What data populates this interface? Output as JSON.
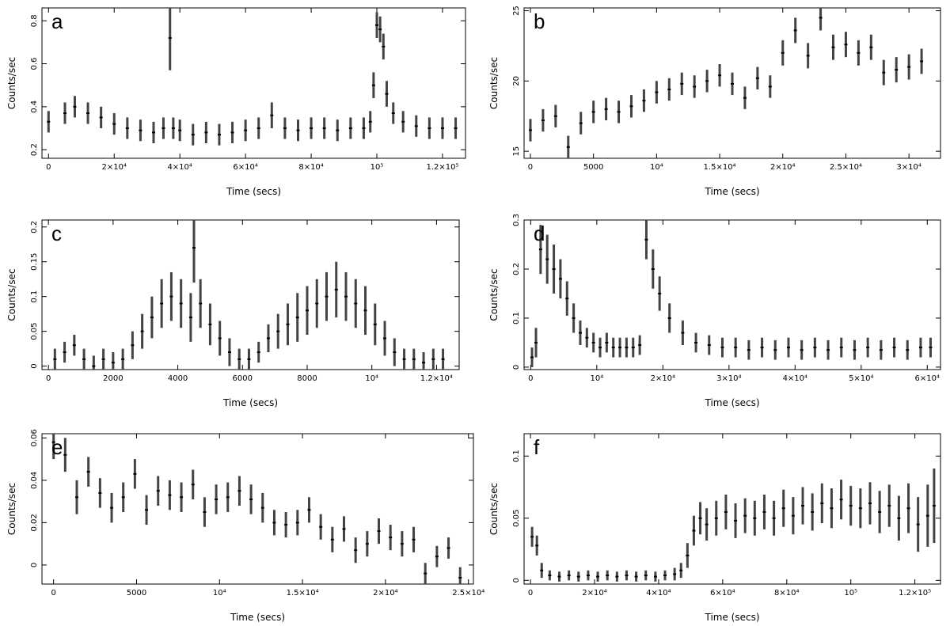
{
  "figure": {
    "note_colors": {
      "frame": "#000000",
      "errorbar": "#444444",
      "point": "#000000",
      "background": "#ffffff"
    }
  },
  "chart_data": [
    {
      "panel": "a",
      "type": "scatter",
      "ylabel": "Counts/sec",
      "xlabel": "Time (secs)",
      "xlim": [
        -2000,
        127000
      ],
      "ylim": [
        0.16,
        0.86
      ],
      "xticks": [
        0,
        20000,
        40000,
        60000,
        80000,
        100000,
        120000
      ],
      "xtick_labels": [
        "0",
        "2×10⁴",
        "4×10⁴",
        "6×10⁴",
        "8×10⁴",
        "10⁵",
        "1.2×10⁵"
      ],
      "yticks": [
        0.2,
        0.4,
        0.6,
        0.8
      ],
      "ytick_labels": [
        "0.2",
        "0.4",
        "0.6",
        "0.8"
      ],
      "x": [
        0,
        5000,
        8000,
        12000,
        16000,
        20000,
        24000,
        28000,
        32000,
        35000,
        37000,
        38000,
        40000,
        44000,
        48000,
        52000,
        56000,
        60000,
        64000,
        68000,
        72000,
        76000,
        80000,
        84000,
        88000,
        92000,
        96000,
        98000,
        99000,
        100000,
        101000,
        102000,
        103000,
        105000,
        108000,
        112000,
        116000,
        120000,
        124000
      ],
      "y": [
        0.33,
        0.37,
        0.4,
        0.37,
        0.35,
        0.32,
        0.3,
        0.29,
        0.28,
        0.3,
        0.72,
        0.3,
        0.29,
        0.27,
        0.28,
        0.27,
        0.28,
        0.29,
        0.3,
        0.36,
        0.3,
        0.29,
        0.3,
        0.3,
        0.29,
        0.3,
        0.3,
        0.33,
        0.5,
        0.78,
        0.76,
        0.68,
        0.46,
        0.37,
        0.33,
        0.31,
        0.3,
        0.3,
        0.3
      ],
      "yerr": [
        0.05,
        0.05,
        0.05,
        0.05,
        0.05,
        0.05,
        0.05,
        0.05,
        0.05,
        0.05,
        0.15,
        0.05,
        0.05,
        0.05,
        0.05,
        0.05,
        0.05,
        0.05,
        0.05,
        0.06,
        0.05,
        0.05,
        0.05,
        0.05,
        0.05,
        0.05,
        0.05,
        0.05,
        0.06,
        0.06,
        0.06,
        0.06,
        0.06,
        0.05,
        0.05,
        0.05,
        0.05,
        0.05,
        0.05
      ]
    },
    {
      "panel": "b",
      "type": "scatter",
      "ylabel": "Counts/sec",
      "xlabel": "Time (secs)",
      "xlim": [
        -500,
        32500
      ],
      "ylim": [
        14.5,
        25.2
      ],
      "xticks": [
        0,
        5000,
        10000,
        15000,
        20000,
        25000,
        30000
      ],
      "xtick_labels": [
        "0",
        "5000",
        "10⁴",
        "1.5×10⁴",
        "2×10⁴",
        "2.5×10⁴",
        "3×10⁴"
      ],
      "yticks": [
        15,
        20,
        25
      ],
      "ytick_labels": [
        "15",
        "20",
        "25"
      ],
      "x": [
        0,
        1000,
        2000,
        3000,
        4000,
        5000,
        6000,
        7000,
        8000,
        9000,
        10000,
        11000,
        12000,
        13000,
        14000,
        15000,
        16000,
        17000,
        18000,
        19000,
        20000,
        21000,
        22000,
        23000,
        24000,
        25000,
        26000,
        27000,
        28000,
        29000,
        30000,
        31000
      ],
      "y": [
        16.5,
        17.2,
        17.5,
        15.3,
        17.0,
        17.8,
        18.0,
        17.8,
        18.2,
        18.6,
        19.2,
        19.4,
        19.8,
        19.6,
        20.0,
        20.4,
        19.8,
        18.8,
        20.2,
        19.6,
        22.0,
        23.6,
        21.8,
        24.5,
        22.4,
        22.6,
        22.0,
        22.4,
        20.6,
        20.8,
        21.0,
        21.4
      ],
      "yerr": [
        0.8,
        0.8,
        0.8,
        0.8,
        0.8,
        0.8,
        0.8,
        0.8,
        0.8,
        0.8,
        0.8,
        0.8,
        0.8,
        0.8,
        0.8,
        0.8,
        0.8,
        0.8,
        0.8,
        0.8,
        0.9,
        0.9,
        0.9,
        0.9,
        0.9,
        0.9,
        0.9,
        0.9,
        0.9,
        0.9,
        0.9,
        0.9
      ]
    },
    {
      "panel": "c",
      "type": "scatter",
      "ylabel": "Counts/sec",
      "xlabel": "Time (secs)",
      "xlim": [
        -200,
        12700
      ],
      "ylim": [
        -0.005,
        0.21
      ],
      "xticks": [
        0,
        2000,
        4000,
        6000,
        8000,
        10000,
        12000
      ],
      "xtick_labels": [
        "0",
        "2000",
        "4000",
        "6000",
        "8000",
        "10⁴",
        "1.2×10⁴"
      ],
      "yticks": [
        0,
        0.05,
        0.1,
        0.15,
        0.2
      ],
      "ytick_labels": [
        "0",
        "0.05",
        "0.1",
        "0.15",
        "0.2"
      ],
      "x": [
        200,
        500,
        800,
        1100,
        1400,
        1700,
        2000,
        2300,
        2600,
        2900,
        3200,
        3500,
        3800,
        4100,
        4400,
        4500,
        4700,
        5000,
        5300,
        5600,
        5900,
        6200,
        6500,
        6800,
        7100,
        7400,
        7700,
        8000,
        8300,
        8600,
        8900,
        9200,
        9500,
        9800,
        10100,
        10400,
        10700,
        11000,
        11300,
        11600,
        11900,
        12200
      ],
      "y": [
        0.01,
        0.02,
        0.03,
        0.01,
        0.0,
        0.01,
        0.005,
        0.01,
        0.03,
        0.05,
        0.07,
        0.09,
        0.1,
        0.09,
        0.07,
        0.17,
        0.09,
        0.06,
        0.04,
        0.02,
        0.01,
        0.01,
        0.02,
        0.04,
        0.05,
        0.06,
        0.07,
        0.08,
        0.09,
        0.1,
        0.11,
        0.1,
        0.09,
        0.08,
        0.06,
        0.04,
        0.02,
        0.01,
        0.01,
        0.005,
        0.01,
        0.01
      ],
      "yerr": [
        0.015,
        0.015,
        0.015,
        0.015,
        0.015,
        0.015,
        0.015,
        0.015,
        0.02,
        0.025,
        0.03,
        0.035,
        0.035,
        0.035,
        0.035,
        0.05,
        0.035,
        0.03,
        0.025,
        0.02,
        0.015,
        0.015,
        0.015,
        0.02,
        0.025,
        0.03,
        0.035,
        0.035,
        0.035,
        0.035,
        0.04,
        0.035,
        0.035,
        0.035,
        0.03,
        0.025,
        0.02,
        0.015,
        0.015,
        0.015,
        0.015,
        0.015
      ]
    },
    {
      "panel": "d",
      "type": "scatter",
      "ylabel": "Counts/sec",
      "xlabel": "Time (secs)",
      "xlim": [
        -1000,
        62000
      ],
      "ylim": [
        -0.005,
        0.3
      ],
      "xticks": [
        0,
        10000,
        20000,
        30000,
        40000,
        50000,
        60000
      ],
      "xtick_labels": [
        "0",
        "10⁴",
        "2×10⁴",
        "3×10⁴",
        "4×10⁴",
        "5×10⁴",
        "6×10⁴"
      ],
      "yticks": [
        0,
        0.1,
        0.2,
        0.3
      ],
      "ytick_labels": [
        "0",
        "0.1",
        "0.2",
        "0.3"
      ],
      "x": [
        200,
        800,
        1500,
        2500,
        3500,
        4500,
        5500,
        6500,
        7500,
        8500,
        9500,
        10500,
        11500,
        12500,
        13500,
        14500,
        15500,
        16500,
        17500,
        18500,
        19500,
        21000,
        23000,
        25000,
        27000,
        29000,
        31000,
        33000,
        35000,
        37000,
        39000,
        41000,
        43000,
        45000,
        47000,
        49000,
        51000,
        53000,
        55000,
        57000,
        59000,
        60500
      ],
      "y": [
        0.02,
        0.05,
        0.24,
        0.22,
        0.2,
        0.18,
        0.14,
        0.1,
        0.07,
        0.06,
        0.05,
        0.04,
        0.05,
        0.04,
        0.04,
        0.04,
        0.04,
        0.045,
        0.26,
        0.2,
        0.15,
        0.1,
        0.07,
        0.05,
        0.045,
        0.04,
        0.04,
        0.035,
        0.04,
        0.035,
        0.04,
        0.035,
        0.04,
        0.035,
        0.04,
        0.035,
        0.04,
        0.035,
        0.04,
        0.035,
        0.04,
        0.04
      ],
      "yerr": [
        0.02,
        0.03,
        0.05,
        0.05,
        0.05,
        0.04,
        0.035,
        0.03,
        0.025,
        0.02,
        0.02,
        0.02,
        0.02,
        0.02,
        0.02,
        0.02,
        0.02,
        0.02,
        0.04,
        0.04,
        0.035,
        0.03,
        0.025,
        0.02,
        0.02,
        0.02,
        0.02,
        0.02,
        0.02,
        0.02,
        0.02,
        0.02,
        0.02,
        0.02,
        0.02,
        0.02,
        0.02,
        0.02,
        0.02,
        0.02,
        0.02,
        0.02
      ]
    },
    {
      "panel": "e",
      "type": "scatter",
      "ylabel": "Counts/sec",
      "xlabel": "Time (secs)",
      "xlim": [
        -700,
        25300
      ],
      "ylim": [
        -0.009,
        0.062
      ],
      "xticks": [
        0,
        5000,
        10000,
        15000,
        20000,
        25000
      ],
      "xtick_labels": [
        "0",
        "5000",
        "10⁴",
        "1.5×10⁴",
        "2×10⁴",
        "2.5×10⁴"
      ],
      "yticks": [
        0,
        0.02,
        0.04,
        0.06
      ],
      "ytick_labels": [
        "0",
        "0.02",
        "0.04",
        "0.06"
      ],
      "x": [
        0,
        700,
        1400,
        2100,
        2800,
        3500,
        4200,
        4900,
        5600,
        6300,
        7000,
        7700,
        8400,
        9100,
        9800,
        10500,
        11200,
        11900,
        12600,
        13300,
        14000,
        14700,
        15400,
        16100,
        16800,
        17500,
        18200,
        18900,
        19600,
        20300,
        21000,
        21700,
        22400,
        23100,
        23800,
        24500
      ],
      "y": [
        0.058,
        0.052,
        0.032,
        0.044,
        0.034,
        0.027,
        0.032,
        0.043,
        0.026,
        0.035,
        0.033,
        0.032,
        0.038,
        0.025,
        0.031,
        0.032,
        0.035,
        0.031,
        0.027,
        0.02,
        0.019,
        0.02,
        0.026,
        0.018,
        0.012,
        0.017,
        0.007,
        0.01,
        0.016,
        0.013,
        0.01,
        0.012,
        -0.004,
        0.004,
        0.008,
        -0.006
      ],
      "yerr": [
        0.008,
        0.008,
        0.008,
        0.007,
        0.007,
        0.007,
        0.007,
        0.007,
        0.007,
        0.007,
        0.007,
        0.007,
        0.007,
        0.007,
        0.007,
        0.007,
        0.007,
        0.007,
        0.007,
        0.006,
        0.006,
        0.006,
        0.006,
        0.006,
        0.006,
        0.006,
        0.006,
        0.006,
        0.006,
        0.006,
        0.006,
        0.006,
        0.005,
        0.005,
        0.005,
        0.005
      ]
    },
    {
      "panel": "f",
      "type": "scatter",
      "ylabel": "Counts/sec",
      "xlabel": "Time (secs)",
      "xlim": [
        -2000,
        128000
      ],
      "ylim": [
        -0.003,
        0.118
      ],
      "xticks": [
        0,
        20000,
        40000,
        60000,
        80000,
        100000,
        120000
      ],
      "xtick_labels": [
        "0",
        "2×10⁴",
        "4×10⁴",
        "6×10⁴",
        "8×10⁴",
        "10⁵",
        "1.2×10⁵"
      ],
      "yticks": [
        0,
        0.05,
        0.1
      ],
      "ytick_labels": [
        "0",
        "0.05",
        "0.1"
      ],
      "x": [
        500,
        2000,
        3500,
        6000,
        9000,
        12000,
        15000,
        18000,
        21000,
        24000,
        27000,
        30000,
        33000,
        36000,
        39000,
        42000,
        45000,
        47000,
        49000,
        51000,
        53000,
        55000,
        58000,
        61000,
        64000,
        67000,
        70000,
        73000,
        76000,
        79000,
        82000,
        85000,
        88000,
        91000,
        94000,
        97000,
        100000,
        103000,
        106000,
        109000,
        112000,
        115000,
        118000,
        121000,
        124000,
        126000
      ],
      "y": [
        0.035,
        0.028,
        0.008,
        0.004,
        0.003,
        0.004,
        0.003,
        0.004,
        0.003,
        0.004,
        0.003,
        0.004,
        0.003,
        0.004,
        0.003,
        0.004,
        0.005,
        0.008,
        0.02,
        0.04,
        0.05,
        0.045,
        0.05,
        0.055,
        0.048,
        0.052,
        0.05,
        0.055,
        0.05,
        0.058,
        0.052,
        0.06,
        0.055,
        0.062,
        0.058,
        0.065,
        0.06,
        0.058,
        0.062,
        0.055,
        0.06,
        0.05,
        0.058,
        0.045,
        0.052,
        0.06
      ],
      "yerr": [
        0.008,
        0.008,
        0.006,
        0.004,
        0.004,
        0.004,
        0.004,
        0.004,
        0.004,
        0.004,
        0.004,
        0.004,
        0.004,
        0.004,
        0.004,
        0.004,
        0.005,
        0.006,
        0.01,
        0.012,
        0.013,
        0.013,
        0.014,
        0.014,
        0.014,
        0.014,
        0.014,
        0.014,
        0.014,
        0.015,
        0.015,
        0.015,
        0.015,
        0.016,
        0.016,
        0.016,
        0.016,
        0.016,
        0.017,
        0.017,
        0.017,
        0.018,
        0.02,
        0.022,
        0.025,
        0.03
      ]
    }
  ]
}
